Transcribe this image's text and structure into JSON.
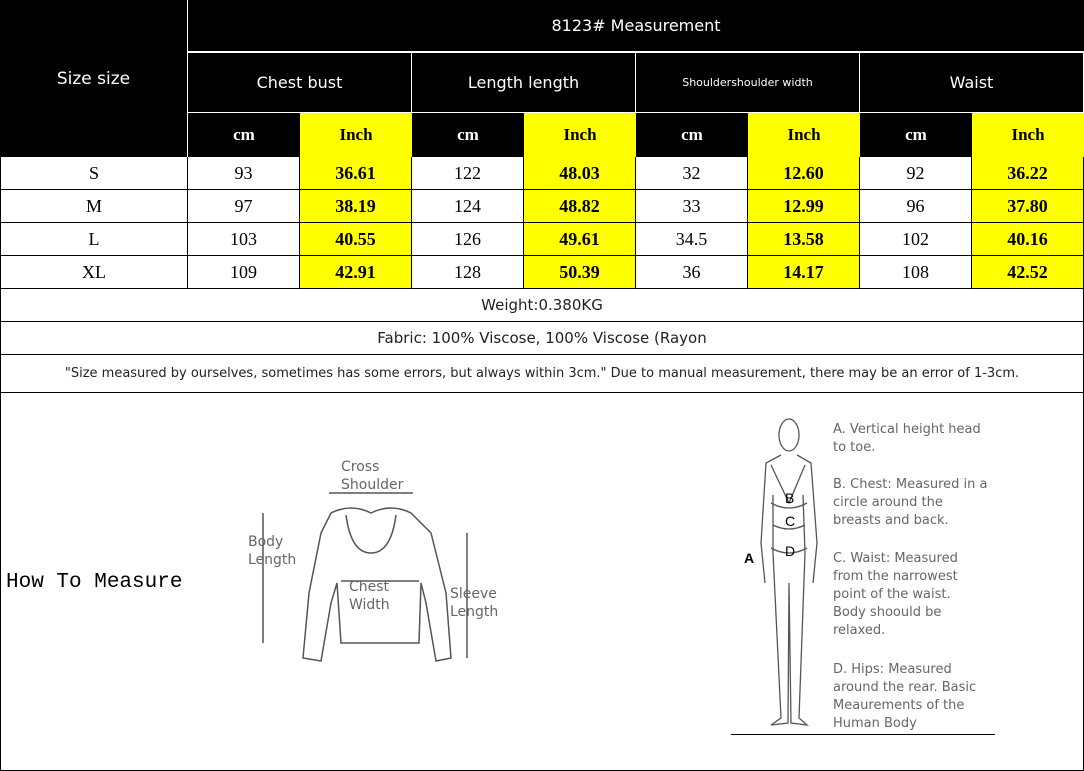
{
  "header": {
    "size_label": "Size size",
    "title": "8123# Measurement",
    "columns": [
      {
        "label": "Chest bust"
      },
      {
        "label": "Length length"
      },
      {
        "label": "Shouldershoulder width"
      },
      {
        "label": "Waist"
      }
    ],
    "unit_cm": "cm",
    "unit_inch": "Inch"
  },
  "rows": [
    {
      "size": "S",
      "values": [
        "93",
        "36.61",
        "122",
        "48.03",
        "32",
        "12.60",
        "92",
        "36.22"
      ]
    },
    {
      "size": "M",
      "values": [
        "97",
        "38.19",
        "124",
        "48.82",
        "33",
        "12.99",
        "96",
        "37.80"
      ]
    },
    {
      "size": "L",
      "values": [
        "103",
        "40.55",
        "126",
        "49.61",
        "34.5",
        "13.58",
        "102",
        "40.16"
      ]
    },
    {
      "size": "XL",
      "values": [
        "109",
        "42.91",
        "128",
        "50.39",
        "36",
        "14.17",
        "108",
        "42.52"
      ]
    }
  ],
  "weight": "Weight:0.380KG",
  "fabric": "Fabric: 100% Viscose, 100% Viscose (Rayon",
  "note": "\"Size measured by ourselves, sometimes has some errors, but always within 3cm.\" Due to manual measurement, there may be an error of 1-3cm.",
  "how_to_measure": "How To Measure",
  "sweater": {
    "cross_shoulder": "Cross Shoulder",
    "body_length": "Body Length",
    "chest_width": "Chest Width",
    "sleeve_length": "Sleeve Length"
  },
  "body": {
    "a": "A",
    "b": "B",
    "c": "C",
    "d": "D",
    "items": [
      "A. Vertical height head to toe.",
      "B. Chest: Measured in a circle around the breasts and back.",
      "C. Waist: Measured from the narrowest point of the waist. Body shoould be relaxed.",
      "D. Hips: Measured around the rear. Basic Meaurements of the Human Body"
    ]
  },
  "colors": {
    "header_bg": "#000000",
    "inch_bg": "#ffff00"
  }
}
